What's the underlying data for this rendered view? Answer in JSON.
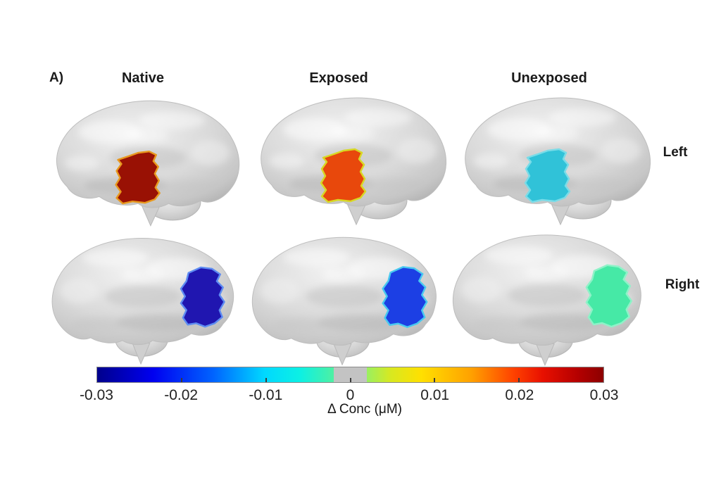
{
  "figure": {
    "panel_label": "A)",
    "columns": [
      "Native",
      "Exposed",
      "Unexposed"
    ],
    "rows": [
      "Left",
      "Right"
    ],
    "brains": [
      {
        "id": "native-left",
        "column": "Native",
        "row": "Left",
        "highlight_color": "#991104",
        "outline_color": "#e8981e"
      },
      {
        "id": "exposed-left",
        "column": "Exposed",
        "row": "Left",
        "highlight_color": "#e8480c",
        "outline_color": "#d8d824"
      },
      {
        "id": "unexposed-left",
        "column": "Unexposed",
        "row": "Left",
        "highlight_color": "#30c2d8",
        "outline_color": "#7adce8"
      },
      {
        "id": "native-right",
        "column": "Native",
        "row": "Right",
        "highlight_color": "#2016b0",
        "outline_color": "#5e8cf2"
      },
      {
        "id": "exposed-right",
        "column": "Exposed",
        "row": "Right",
        "highlight_color": "#1c3fe4",
        "outline_color": "#48c8f0"
      },
      {
        "id": "unexposed-right",
        "column": "Unexposed",
        "row": "Right",
        "highlight_color": "#46e9a6",
        "outline_color": "#8ff2c8"
      }
    ],
    "colorbar": {
      "label": "Δ Conc (μM)",
      "tick_labels": [
        "-0.03",
        "-0.02",
        "-0.01",
        "0",
        "0.01",
        "0.02",
        "0.03"
      ],
      "min": -0.03,
      "max": 0.03,
      "colormap": "jet",
      "neutral_band_color": "#c3c3c3",
      "neutral_band_range": [
        -0.002,
        0.002
      ]
    },
    "brain_base_color": "#d3d3d3"
  },
  "chart_data": {
    "type": "heatmap",
    "title": "A)",
    "description": "Concentration change mapped onto highlighted cortical regions of left and right hemisphere brain renderings for three groups",
    "categories": [
      "Native",
      "Exposed",
      "Unexposed"
    ],
    "series": [
      {
        "name": "Left",
        "values": [
          0.029,
          0.021,
          -0.012
        ]
      },
      {
        "name": "Right",
        "values": [
          -0.027,
          -0.022,
          -0.008
        ]
      }
    ],
    "values_estimated_from_colorbar": true,
    "colorbar": {
      "label": "Δ Conc (μM)",
      "range": [
        -0.03,
        0.03
      ],
      "ticks": [
        -0.03,
        -0.02,
        -0.01,
        0,
        0.01,
        0.02,
        0.03
      ],
      "colormap": "jet",
      "neutral_band": [
        -0.002,
        0.002
      ]
    }
  }
}
